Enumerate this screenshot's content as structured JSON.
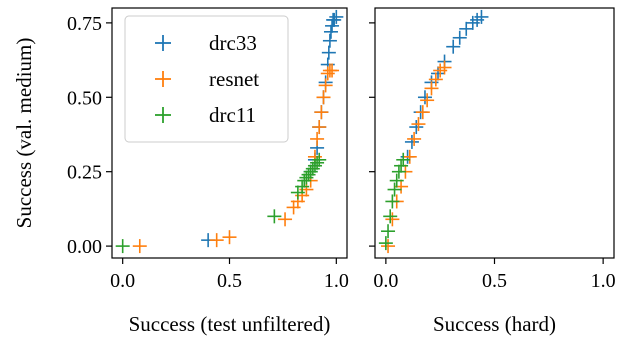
{
  "chart_data": {
    "type": "scatter",
    "marker": "plus",
    "shared_y": true,
    "ylabel": "Success (val. medium)",
    "ylim": [
      -0.04,
      0.8
    ],
    "yticks": [
      "0.00",
      "0.25",
      "0.50",
      "0.75"
    ],
    "grid": false,
    "legend": {
      "placement": "top-left of left panel",
      "entries": [
        {
          "name": "drc33",
          "color": "#1f77b4"
        },
        {
          "name": "resnet",
          "color": "#ff7f0e"
        },
        {
          "name": "drc11",
          "color": "#2ca02c"
        }
      ]
    },
    "panels": [
      {
        "xlabel": "Success (test unfiltered)",
        "xlim": [
          -0.05,
          1.05
        ],
        "xticks": [
          "0.0",
          "0.5",
          "1.0"
        ],
        "series": [
          {
            "name": "drc33",
            "color": "#1f77b4",
            "points": [
              [
                0.4,
                0.02
              ],
              [
                0.88,
                0.25
              ],
              [
                0.9,
                0.29
              ],
              [
                0.91,
                0.33
              ],
              [
                0.92,
                0.4
              ],
              [
                0.93,
                0.45
              ],
              [
                0.94,
                0.5
              ],
              [
                0.95,
                0.55
              ],
              [
                0.96,
                0.61
              ],
              [
                0.965,
                0.65
              ],
              [
                0.97,
                0.69
              ],
              [
                0.975,
                0.72
              ],
              [
                0.98,
                0.74
              ],
              [
                0.985,
                0.76
              ],
              [
                0.99,
                0.76
              ],
              [
                1.0,
                0.77
              ]
            ]
          },
          {
            "name": "resnet",
            "color": "#ff7f0e",
            "points": [
              [
                0.08,
                0.0
              ],
              [
                0.44,
                0.02
              ],
              [
                0.5,
                0.03
              ],
              [
                0.76,
                0.09
              ],
              [
                0.8,
                0.13
              ],
              [
                0.82,
                0.15
              ],
              [
                0.84,
                0.17
              ],
              [
                0.86,
                0.19
              ],
              [
                0.88,
                0.22
              ],
              [
                0.9,
                0.3
              ],
              [
                0.91,
                0.36
              ],
              [
                0.92,
                0.4
              ],
              [
                0.93,
                0.45
              ],
              [
                0.94,
                0.5
              ],
              [
                0.95,
                0.54
              ],
              [
                0.96,
                0.58
              ],
              [
                0.97,
                0.59
              ],
              [
                0.98,
                0.59
              ]
            ]
          },
          {
            "name": "drc11",
            "color": "#2ca02c",
            "points": [
              [
                0.0,
                0.0
              ],
              [
                0.71,
                0.1
              ],
              [
                0.82,
                0.18
              ],
              [
                0.84,
                0.2
              ],
              [
                0.85,
                0.22
              ],
              [
                0.86,
                0.23
              ],
              [
                0.87,
                0.24
              ],
              [
                0.88,
                0.25
              ],
              [
                0.89,
                0.26
              ],
              [
                0.9,
                0.27
              ],
              [
                0.91,
                0.28
              ],
              [
                0.92,
                0.29
              ]
            ]
          }
        ]
      },
      {
        "xlabel": "Success (hard)",
        "xlim": [
          -0.05,
          1.05
        ],
        "xticks": [
          "0.0",
          "0.5",
          "1.0"
        ],
        "series": [
          {
            "name": "drc33",
            "color": "#1f77b4",
            "points": [
              [
                0.1,
                0.3
              ],
              [
                0.12,
                0.35
              ],
              [
                0.14,
                0.4
              ],
              [
                0.16,
                0.45
              ],
              [
                0.18,
                0.5
              ],
              [
                0.21,
                0.55
              ],
              [
                0.24,
                0.58
              ],
              [
                0.27,
                0.62
              ],
              [
                0.31,
                0.67
              ],
              [
                0.34,
                0.7
              ],
              [
                0.37,
                0.73
              ],
              [
                0.4,
                0.75
              ],
              [
                0.42,
                0.76
              ],
              [
                0.44,
                0.77
              ]
            ]
          },
          {
            "name": "resnet",
            "color": "#ff7f0e",
            "points": [
              [
                0.01,
                0.0
              ],
              [
                0.03,
                0.09
              ],
              [
                0.05,
                0.15
              ],
              [
                0.07,
                0.2
              ],
              [
                0.09,
                0.25
              ],
              [
                0.11,
                0.3
              ],
              [
                0.13,
                0.36
              ],
              [
                0.15,
                0.41
              ],
              [
                0.17,
                0.45
              ],
              [
                0.19,
                0.49
              ],
              [
                0.21,
                0.53
              ],
              [
                0.23,
                0.56
              ],
              [
                0.25,
                0.59
              ],
              [
                0.27,
                0.6
              ]
            ]
          },
          {
            "name": "drc11",
            "color": "#2ca02c",
            "points": [
              [
                0.0,
                0.01
              ],
              [
                0.01,
                0.05
              ],
              [
                0.02,
                0.1
              ],
              [
                0.03,
                0.15
              ],
              [
                0.04,
                0.19
              ],
              [
                0.05,
                0.22
              ],
              [
                0.06,
                0.25
              ],
              [
                0.07,
                0.27
              ],
              [
                0.08,
                0.29
              ]
            ]
          }
        ]
      }
    ]
  }
}
